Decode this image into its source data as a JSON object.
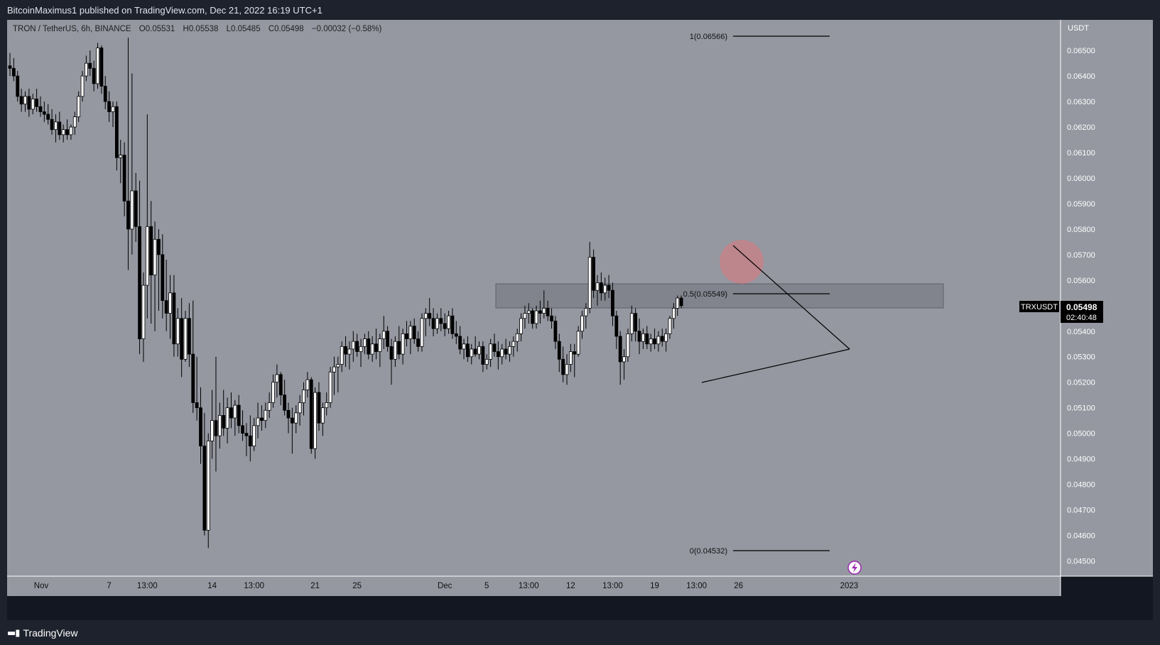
{
  "header": {
    "publisher_text": "BitcoinMaximus1 published on TradingView.com, Dec 21, 2022 16:19 UTC+1"
  },
  "legend": {
    "symbol": "TRON / TetherUS, 6h, BINANCE",
    "o_label": "O",
    "o_value": "0.05531",
    "h_label": "H",
    "h_value": "0.05538",
    "l_label": "L",
    "l_value": "0.05485",
    "c_label": "C",
    "c_value": "0.05498",
    "change": "−0.00032 (−0.58%)"
  },
  "price_scale": {
    "currency": "USDT",
    "symbol_badge": "TRXUSDT",
    "last_price": "0.05498",
    "countdown": "02:40:48"
  },
  "annotations": {
    "fib_1": "1(0.06566)",
    "fib_05": "0.5(0.05549)",
    "fib_0": "0(0.04532)"
  },
  "footer": {
    "brand": "TradingView"
  },
  "colors": {
    "plot_bg": "#9598a1",
    "candle_up": "#ffffff",
    "candle_down": "#000000",
    "zone": "#7b7e87",
    "highlight_circle": "#d9787e",
    "price_badge": "#000000"
  },
  "chart_data": {
    "type": "candlestick",
    "interval": "6h",
    "ylim": [
      0.0444,
      0.0662
    ],
    "y_ticks": [
      "0.06500",
      "0.06400",
      "0.06300",
      "0.06200",
      "0.06100",
      "0.06000",
      "0.05900",
      "0.05800",
      "0.05700",
      "0.05600",
      "0.05500",
      "0.05400",
      "0.05300",
      "0.05200",
      "0.05100",
      "0.05000",
      "0.04900",
      "0.04800",
      "0.04700",
      "0.04600",
      "0.04500"
    ],
    "x_ticks": [
      "Nov",
      "7",
      "13:00",
      "14",
      "13:00",
      "21",
      "25",
      "Dec",
      "5",
      "13:00",
      "12",
      "13:00",
      "19",
      "13:00",
      "26",
      "2023"
    ],
    "x_tick_candle_index": [
      0,
      26,
      36,
      53,
      64,
      80,
      91,
      114,
      125,
      136,
      147,
      158,
      169,
      180,
      191,
      220
    ],
    "candles": [
      [
        0.0644,
        0.0649,
        0.064,
        0.0643
      ],
      [
        0.0643,
        0.0647,
        0.0638,
        0.064
      ],
      [
        0.064,
        0.0642,
        0.063,
        0.0632
      ],
      [
        0.0632,
        0.0635,
        0.0626,
        0.0629
      ],
      [
        0.0629,
        0.0634,
        0.0626,
        0.0632
      ],
      [
        0.0632,
        0.0635,
        0.0624,
        0.0627
      ],
      [
        0.0627,
        0.0633,
        0.0625,
        0.0631
      ],
      [
        0.0631,
        0.0635,
        0.0626,
        0.0628
      ],
      [
        0.0628,
        0.0632,
        0.0624,
        0.0626
      ],
      [
        0.0626,
        0.063,
        0.0622,
        0.0625
      ],
      [
        0.0625,
        0.0629,
        0.0621,
        0.0623
      ],
      [
        0.0623,
        0.0627,
        0.0617,
        0.0619
      ],
      [
        0.0619,
        0.0625,
        0.0614,
        0.0622
      ],
      [
        0.0622,
        0.0626,
        0.0615,
        0.0617
      ],
      [
        0.0617,
        0.0621,
        0.0614,
        0.0619
      ],
      [
        0.0619,
        0.0623,
        0.0615,
        0.0617
      ],
      [
        0.0617,
        0.0621,
        0.0615,
        0.062
      ],
      [
        0.062,
        0.0626,
        0.0617,
        0.0624
      ],
      [
        0.0624,
        0.0634,
        0.0622,
        0.0632
      ],
      [
        0.0632,
        0.0642,
        0.063,
        0.064
      ],
      [
        0.064,
        0.0648,
        0.0638,
        0.0645
      ],
      [
        0.0645,
        0.065,
        0.064,
        0.0643
      ],
      [
        0.0643,
        0.0646,
        0.0634,
        0.0637
      ],
      [
        0.0637,
        0.0653,
        0.0635,
        0.0651
      ],
      [
        0.0651,
        0.0652,
        0.0633,
        0.0636
      ],
      [
        0.0636,
        0.064,
        0.0627,
        0.063
      ],
      [
        0.063,
        0.0634,
        0.0622,
        0.0626
      ],
      [
        0.0626,
        0.063,
        0.062,
        0.0628
      ],
      [
        0.0628,
        0.063,
        0.0603,
        0.0608
      ],
      [
        0.0608,
        0.0615,
        0.0598,
        0.0609
      ],
      [
        0.0609,
        0.0614,
        0.0585,
        0.0591
      ],
      [
        0.0591,
        0.0655,
        0.0564,
        0.058
      ],
      [
        0.058,
        0.0641,
        0.057,
        0.0595
      ],
      [
        0.0595,
        0.0602,
        0.0575,
        0.0581
      ],
      [
        0.0581,
        0.0599,
        0.0531,
        0.0537
      ],
      [
        0.0537,
        0.0563,
        0.0528,
        0.0558
      ],
      [
        0.0558,
        0.0625,
        0.0545,
        0.0581
      ],
      [
        0.0581,
        0.0591,
        0.0543,
        0.0562
      ],
      [
        0.0562,
        0.0583,
        0.054,
        0.0576
      ],
      [
        0.0576,
        0.058,
        0.0548,
        0.057
      ],
      [
        0.057,
        0.0578,
        0.0545,
        0.0552
      ],
      [
        0.0552,
        0.0568,
        0.054,
        0.0547
      ],
      [
        0.0547,
        0.0562,
        0.0537,
        0.0555
      ],
      [
        0.0555,
        0.0562,
        0.053,
        0.0535
      ],
      [
        0.0535,
        0.0549,
        0.053,
        0.0545
      ],
      [
        0.0545,
        0.0553,
        0.0522,
        0.0529
      ],
      [
        0.0529,
        0.0548,
        0.0528,
        0.0545
      ],
      [
        0.0545,
        0.0551,
        0.0526,
        0.0531
      ],
      [
        0.0531,
        0.0552,
        0.0508,
        0.0512
      ],
      [
        0.0512,
        0.053,
        0.0505,
        0.051
      ],
      [
        0.051,
        0.0518,
        0.0488,
        0.0495
      ],
      [
        0.0495,
        0.0508,
        0.046,
        0.0462
      ],
      [
        0.0462,
        0.05,
        0.0455,
        0.0497
      ],
      [
        0.0497,
        0.0517,
        0.049,
        0.0505
      ],
      [
        0.0505,
        0.053,
        0.0485,
        0.0499
      ],
      [
        0.0499,
        0.0512,
        0.0494,
        0.0507
      ],
      [
        0.0507,
        0.0517,
        0.0499,
        0.0502
      ],
      [
        0.0502,
        0.0514,
        0.0496,
        0.051
      ],
      [
        0.051,
        0.0516,
        0.0502,
        0.0506
      ],
      [
        0.0506,
        0.0513,
        0.0499,
        0.0511
      ],
      [
        0.0511,
        0.0515,
        0.05,
        0.0503
      ],
      [
        0.0503,
        0.0509,
        0.0497,
        0.05
      ],
      [
        0.05,
        0.0504,
        0.0491,
        0.0499
      ],
      [
        0.0499,
        0.0507,
        0.0489,
        0.0495
      ],
      [
        0.0495,
        0.0506,
        0.0493,
        0.0503
      ],
      [
        0.0503,
        0.0512,
        0.0498,
        0.0506
      ],
      [
        0.0506,
        0.0511,
        0.0501,
        0.0505
      ],
      [
        0.0505,
        0.0512,
        0.0502,
        0.0509
      ],
      [
        0.0509,
        0.0516,
        0.0506,
        0.0512
      ],
      [
        0.0512,
        0.0523,
        0.051,
        0.052
      ],
      [
        0.052,
        0.0527,
        0.0514,
        0.0523
      ],
      [
        0.0523,
        0.0524,
        0.0511,
        0.0515
      ],
      [
        0.0515,
        0.0521,
        0.0507,
        0.0509
      ],
      [
        0.0509,
        0.0512,
        0.05,
        0.0506
      ],
      [
        0.0506,
        0.051,
        0.0492,
        0.0504
      ],
      [
        0.0504,
        0.0511,
        0.05,
        0.0508
      ],
      [
        0.0508,
        0.0515,
        0.0503,
        0.0512
      ],
      [
        0.0512,
        0.052,
        0.0507,
        0.0517
      ],
      [
        0.0517,
        0.0524,
        0.0514,
        0.0521
      ],
      [
        0.0521,
        0.0522,
        0.0492,
        0.0494
      ],
      [
        0.0494,
        0.0518,
        0.049,
        0.0516
      ],
      [
        0.0516,
        0.052,
        0.0501,
        0.0504
      ],
      [
        0.0504,
        0.0512,
        0.0499,
        0.051
      ],
      [
        0.051,
        0.0516,
        0.0507,
        0.0512
      ],
      [
        0.0512,
        0.0526,
        0.051,
        0.0524
      ],
      [
        0.0524,
        0.053,
        0.0515,
        0.0526
      ],
      [
        0.0526,
        0.053,
        0.0516,
        0.0527
      ],
      [
        0.0527,
        0.0536,
        0.0524,
        0.0534
      ],
      [
        0.0534,
        0.0538,
        0.0526,
        0.0531
      ],
      [
        0.0531,
        0.0536,
        0.0525,
        0.0533
      ],
      [
        0.0533,
        0.054,
        0.0528,
        0.0536
      ],
      [
        0.0536,
        0.0539,
        0.053,
        0.0532
      ],
      [
        0.0532,
        0.0537,
        0.0526,
        0.0534
      ],
      [
        0.0534,
        0.0539,
        0.0531,
        0.0537
      ],
      [
        0.0537,
        0.054,
        0.0529,
        0.0531
      ],
      [
        0.0531,
        0.0538,
        0.0528,
        0.0535
      ],
      [
        0.0535,
        0.0541,
        0.0529,
        0.0532
      ],
      [
        0.0532,
        0.0539,
        0.0526,
        0.0537
      ],
      [
        0.0537,
        0.0546,
        0.0533,
        0.054
      ],
      [
        0.054,
        0.0542,
        0.0532,
        0.0534
      ],
      [
        0.0534,
        0.0537,
        0.0519,
        0.0529
      ],
      [
        0.0529,
        0.0538,
        0.0526,
        0.0536
      ],
      [
        0.0536,
        0.0542,
        0.0529,
        0.0531
      ],
      [
        0.0531,
        0.0541,
        0.0527,
        0.0539
      ],
      [
        0.0539,
        0.0544,
        0.0534,
        0.0537
      ],
      [
        0.0537,
        0.0544,
        0.0531,
        0.0542
      ],
      [
        0.0542,
        0.0545,
        0.0535,
        0.0537
      ],
      [
        0.0537,
        0.054,
        0.0532,
        0.0534
      ],
      [
        0.0534,
        0.0547,
        0.0532,
        0.0545
      ],
      [
        0.0545,
        0.0549,
        0.0538,
        0.0547
      ],
      [
        0.0547,
        0.0553,
        0.0542,
        0.0545
      ],
      [
        0.0545,
        0.0549,
        0.0538,
        0.0541
      ],
      [
        0.0541,
        0.0547,
        0.0539,
        0.0545
      ],
      [
        0.0545,
        0.0549,
        0.054,
        0.0543
      ],
      [
        0.0543,
        0.0547,
        0.0538,
        0.0541
      ],
      [
        0.0541,
        0.0548,
        0.0539,
        0.0546
      ],
      [
        0.0546,
        0.0549,
        0.0537,
        0.0539
      ],
      [
        0.0539,
        0.0544,
        0.0535,
        0.0538
      ],
      [
        0.0538,
        0.0542,
        0.0531,
        0.0533
      ],
      [
        0.0533,
        0.0537,
        0.0529,
        0.0535
      ],
      [
        0.0535,
        0.0538,
        0.0528,
        0.053
      ],
      [
        0.053,
        0.0535,
        0.0527,
        0.0533
      ],
      [
        0.0533,
        0.0538,
        0.053,
        0.0531
      ],
      [
        0.0531,
        0.0536,
        0.0529,
        0.0534
      ],
      [
        0.0534,
        0.0536,
        0.0524,
        0.0527
      ],
      [
        0.0527,
        0.0531,
        0.0525,
        0.0529
      ],
      [
        0.0529,
        0.0537,
        0.0526,
        0.0535
      ],
      [
        0.0535,
        0.0539,
        0.053,
        0.0532
      ],
      [
        0.0532,
        0.0536,
        0.0525,
        0.053
      ],
      [
        0.053,
        0.0535,
        0.0527,
        0.0533
      ],
      [
        0.0533,
        0.0537,
        0.0529,
        0.0531
      ],
      [
        0.0531,
        0.0536,
        0.0528,
        0.0534
      ],
      [
        0.0534,
        0.0538,
        0.053,
        0.0536
      ],
      [
        0.0536,
        0.0541,
        0.0532,
        0.0539
      ],
      [
        0.0539,
        0.0547,
        0.0536,
        0.0545
      ],
      [
        0.0545,
        0.055,
        0.0541,
        0.0547
      ],
      [
        0.0547,
        0.0551,
        0.0543,
        0.0548
      ],
      [
        0.0548,
        0.0549,
        0.0541,
        0.0543
      ],
      [
        0.0543,
        0.055,
        0.0541,
        0.0548
      ],
      [
        0.0548,
        0.0552,
        0.0543,
        0.0547
      ],
      [
        0.0547,
        0.0556,
        0.0545,
        0.0549
      ],
      [
        0.0549,
        0.0552,
        0.0544,
        0.0546
      ],
      [
        0.0546,
        0.0549,
        0.0541,
        0.0544
      ],
      [
        0.0544,
        0.0546,
        0.0533,
        0.0536
      ],
      [
        0.0536,
        0.0539,
        0.0524,
        0.0529
      ],
      [
        0.0529,
        0.0534,
        0.052,
        0.0523
      ],
      [
        0.0523,
        0.0531,
        0.0519,
        0.0527
      ],
      [
        0.0527,
        0.0535,
        0.0524,
        0.0532
      ],
      [
        0.0532,
        0.0535,
        0.0522,
        0.0531
      ],
      [
        0.0531,
        0.0542,
        0.053,
        0.054
      ],
      [
        0.054,
        0.0548,
        0.0537,
        0.0546
      ],
      [
        0.0546,
        0.0551,
        0.0541,
        0.0549
      ],
      [
        0.0549,
        0.0575,
        0.0547,
        0.0569
      ],
      [
        0.0569,
        0.0572,
        0.0553,
        0.0556
      ],
      [
        0.0556,
        0.0562,
        0.055,
        0.0559
      ],
      [
        0.0559,
        0.0563,
        0.0552,
        0.0555
      ],
      [
        0.0555,
        0.0561,
        0.0552,
        0.0558
      ],
      [
        0.0558,
        0.0562,
        0.0553,
        0.0556
      ],
      [
        0.0556,
        0.0559,
        0.0542,
        0.0546
      ],
      [
        0.0546,
        0.0548,
        0.0533,
        0.0538
      ],
      [
        0.0538,
        0.054,
        0.0519,
        0.0528
      ],
      [
        0.0528,
        0.0533,
        0.0521,
        0.053
      ],
      [
        0.053,
        0.0541,
        0.0528,
        0.0539
      ],
      [
        0.0539,
        0.055,
        0.0536,
        0.0547
      ],
      [
        0.0547,
        0.0549,
        0.0536,
        0.054
      ],
      [
        0.054,
        0.0545,
        0.0531,
        0.0536
      ],
      [
        0.0536,
        0.0541,
        0.0533,
        0.0539
      ],
      [
        0.0539,
        0.0542,
        0.0533,
        0.0535
      ],
      [
        0.0535,
        0.0539,
        0.0532,
        0.0537
      ],
      [
        0.0537,
        0.0541,
        0.0533,
        0.0535
      ],
      [
        0.0535,
        0.054,
        0.0532,
        0.0538
      ],
      [
        0.0538,
        0.0541,
        0.0534,
        0.0536
      ],
      [
        0.0536,
        0.0541,
        0.0532,
        0.0539
      ],
      [
        0.0539,
        0.0546,
        0.0537,
        0.0545
      ],
      [
        0.0545,
        0.0551,
        0.0541,
        0.0549
      ],
      [
        0.0549,
        0.0554,
        0.0546,
        0.0553
      ],
      [
        0.0553,
        0.0554,
        0.0549,
        0.055
      ]
    ]
  }
}
